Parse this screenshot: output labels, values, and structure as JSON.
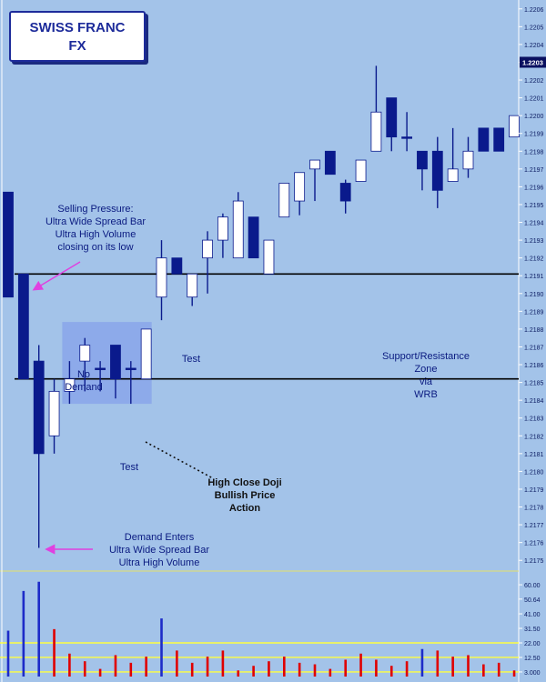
{
  "title_line1": "SWISS FRANC",
  "title_line2": "FX",
  "annotations": {
    "selling_pressure": "Selling Pressure:\nUltra Wide Spread Bar\nUltra High Volume\nclosing on its low",
    "no_demand": "No\nDemand",
    "test_upper": "Test",
    "test_lower": "Test",
    "support_resistance": "Support/Resistance\nZone\nvia\nWRB",
    "high_close_doji": "High Close Doji\nBullish Price\nAction",
    "demand_enters": "Demand Enters\nUltra Wide Spread Bar\nUltra High Volume"
  },
  "colors": {
    "background": "#a3c3e9",
    "bear": "#0a1a8c",
    "bull": "#ffffff",
    "vol_up": "#1d2bc8",
    "vol_down": "#e00000",
    "vol_level": "#ffff40",
    "zone": "#8aa6ea",
    "arrow": "#e040e0"
  },
  "chart_data": {
    "type": "candlestick",
    "price_axis": {
      "range": [
        1.21745,
        1.22065
      ],
      "ticks": [
        "1.2206",
        "1.2205",
        "1.2204",
        "1.2203",
        "1.2202",
        "1.2201",
        "1.2200",
        "1.2199",
        "1.2198",
        "1.2197",
        "1.2196",
        "1.2195",
        "1.2194",
        "1.2193",
        "1.2192",
        "1.2191",
        "1.2190",
        "1.2189",
        "1.2188",
        "1.2187",
        "1.2186",
        "1.2185",
        "1.2184",
        "1.2183",
        "1.2182",
        "1.2181",
        "1.2180",
        "1.2179",
        "1.2178",
        "1.2177",
        "1.2176",
        "1.2175"
      ],
      "current_price": "1.2203"
    },
    "levels": [
      1.21911,
      1.21852
    ],
    "candles": [
      {
        "o": 1.21957,
        "h": 1.21957,
        "l": 1.21898,
        "c": 1.21898
      },
      {
        "o": 1.21911,
        "h": 1.21911,
        "l": 1.21852,
        "c": 1.21852
      },
      {
        "o": 1.21862,
        "h": 1.21871,
        "l": 1.21757,
        "c": 1.2181
      },
      {
        "o": 1.2182,
        "h": 1.21852,
        "l": 1.2181,
        "c": 1.21845
      },
      {
        "o": 1.21845,
        "h": 1.21862,
        "l": 1.21838,
        "c": 1.21852
      },
      {
        "o": 1.21862,
        "h": 1.21875,
        "l": 1.21845,
        "c": 1.21871
      },
      {
        "o": 1.21858,
        "h": 1.21862,
        "l": 1.21845,
        "c": 1.21858
      },
      {
        "o": 1.21871,
        "h": 1.21871,
        "l": 1.21841,
        "c": 1.21852
      },
      {
        "o": 1.21858,
        "h": 1.21862,
        "l": 1.21838,
        "c": 1.21858
      },
      {
        "o": 1.21852,
        "h": 1.2188,
        "l": 1.21852,
        "c": 1.2188
      },
      {
        "o": 1.21898,
        "h": 1.2193,
        "l": 1.21885,
        "c": 1.2192
      },
      {
        "o": 1.2192,
        "h": 1.2192,
        "l": 1.21911,
        "c": 1.21911
      },
      {
        "o": 1.21898,
        "h": 1.21911,
        "l": 1.21893,
        "c": 1.21911
      },
      {
        "o": 1.2192,
        "h": 1.21935,
        "l": 1.219,
        "c": 1.2193
      },
      {
        "o": 1.2193,
        "h": 1.21945,
        "l": 1.2192,
        "c": 1.21943
      },
      {
        "o": 1.2192,
        "h": 1.21957,
        "l": 1.2192,
        "c": 1.21952
      },
      {
        "o": 1.21943,
        "h": 1.21943,
        "l": 1.2192,
        "c": 1.2192
      },
      {
        "o": 1.21911,
        "h": 1.2193,
        "l": 1.21911,
        "c": 1.2193
      },
      {
        "o": 1.21943,
        "h": 1.21962,
        "l": 1.21943,
        "c": 1.21962
      },
      {
        "o": 1.21952,
        "h": 1.21968,
        "l": 1.21944,
        "c": 1.21968
      },
      {
        "o": 1.2197,
        "h": 1.21975,
        "l": 1.21952,
        "c": 1.21975
      },
      {
        "o": 1.2198,
        "h": 1.2198,
        "l": 1.21967,
        "c": 1.21967
      },
      {
        "o": 1.21962,
        "h": 1.21964,
        "l": 1.21945,
        "c": 1.21952
      },
      {
        "o": 1.21963,
        "h": 1.21975,
        "l": 1.21963,
        "c": 1.21975
      },
      {
        "o": 1.2198,
        "h": 1.22028,
        "l": 1.2198,
        "c": 1.22002
      },
      {
        "o": 1.2201,
        "h": 1.2201,
        "l": 1.2198,
        "c": 1.21988
      },
      {
        "o": 1.21988,
        "h": 1.22002,
        "l": 1.2198,
        "c": 1.21988
      },
      {
        "o": 1.2198,
        "h": 1.2198,
        "l": 1.21958,
        "c": 1.2197
      },
      {
        "o": 1.2198,
        "h": 1.21988,
        "l": 1.21948,
        "c": 1.21958
      },
      {
        "o": 1.21963,
        "h": 1.21993,
        "l": 1.21963,
        "c": 1.2197
      },
      {
        "o": 1.2197,
        "h": 1.21988,
        "l": 1.21965,
        "c": 1.2198
      },
      {
        "o": 1.21993,
        "h": 1.21993,
        "l": 1.2198,
        "c": 1.2198
      },
      {
        "o": 1.21993,
        "h": 1.21993,
        "l": 1.2198,
        "c": 1.2198
      },
      {
        "o": 1.21988,
        "h": 1.22,
        "l": 1.21988,
        "c": 1.22
      }
    ],
    "volume_axis": {
      "range": [
        0,
        66
      ],
      "ticks": [
        "60.00",
        "50.64",
        "41.00",
        "31.50",
        "22.00",
        "12.50",
        "3.000"
      ],
      "levels": [
        22.0,
        12.5,
        3.0
      ]
    },
    "volume": [
      {
        "v": 30,
        "up": true
      },
      {
        "v": 56,
        "up": true
      },
      {
        "v": 62,
        "up": true
      },
      {
        "v": 31,
        "up": false
      },
      {
        "v": 15,
        "up": false
      },
      {
        "v": 10,
        "up": false
      },
      {
        "v": 5,
        "up": false
      },
      {
        "v": 14,
        "up": false
      },
      {
        "v": 9,
        "up": false
      },
      {
        "v": 13,
        "up": false
      },
      {
        "v": 38,
        "up": true
      },
      {
        "v": 17,
        "up": false
      },
      {
        "v": 9,
        "up": false
      },
      {
        "v": 13,
        "up": false
      },
      {
        "v": 17,
        "up": false
      },
      {
        "v": 4,
        "up": false
      },
      {
        "v": 7,
        "up": false
      },
      {
        "v": 10,
        "up": false
      },
      {
        "v": 13,
        "up": false
      },
      {
        "v": 9,
        "up": false
      },
      {
        "v": 8,
        "up": false
      },
      {
        "v": 5,
        "up": false
      },
      {
        "v": 11,
        "up": false
      },
      {
        "v": 15,
        "up": false
      },
      {
        "v": 11,
        "up": false
      },
      {
        "v": 7,
        "up": false
      },
      {
        "v": 10,
        "up": false
      },
      {
        "v": 18,
        "up": true
      },
      {
        "v": 17,
        "up": false
      },
      {
        "v": 13,
        "up": false
      },
      {
        "v": 14,
        "up": false
      },
      {
        "v": 8,
        "up": false
      },
      {
        "v": 9,
        "up": false
      },
      {
        "v": 4,
        "up": false
      }
    ]
  }
}
